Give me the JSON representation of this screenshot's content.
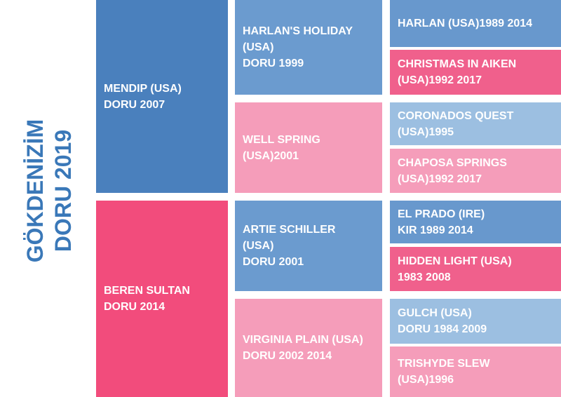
{
  "subject": {
    "lines": [
      "GÖKDENİZİM",
      "DORU 2019"
    ]
  },
  "parents": [
    {
      "lines": [
        "MENDIP (USA)",
        "DORU 2007"
      ]
    },
    {
      "lines": [
        "BEREN SULTAN",
        "DORU 2014"
      ]
    }
  ],
  "grandparents": [
    {
      "lines": [
        "HARLAN'S HOLIDAY",
        "(USA)",
        "DORU 1999"
      ]
    },
    {
      "lines": [
        "WELL SPRING",
        "(USA)2001"
      ]
    },
    {
      "lines": [
        "ARTIE SCHILLER",
        "(USA)",
        "DORU 2001"
      ]
    },
    {
      "lines": [
        "VIRGINIA PLAIN (USA)",
        "DORU 2002 2014"
      ]
    }
  ],
  "great_grandparents": [
    {
      "lines": [
        "HARLAN (USA)1989 2014"
      ]
    },
    {
      "lines": [
        "CHRISTMAS IN AIKEN",
        "(USA)1992 2017"
      ]
    },
    {
      "lines": [
        "CORONADOS QUEST",
        "(USA)1995"
      ]
    },
    {
      "lines": [
        "CHAPOSA SPRINGS",
        "(USA)1992 2017"
      ]
    },
    {
      "lines": [
        "EL PRADO (IRE)",
        "KIR 1989 2014"
      ]
    },
    {
      "lines": [
        "HIDDEN LIGHT (USA)",
        "1983 2008"
      ]
    },
    {
      "lines": [
        "GULCH (USA)",
        "DORU 1984 2009"
      ]
    },
    {
      "lines": [
        "TRISHYDE SLEW",
        "(USA)1996"
      ]
    }
  ]
}
